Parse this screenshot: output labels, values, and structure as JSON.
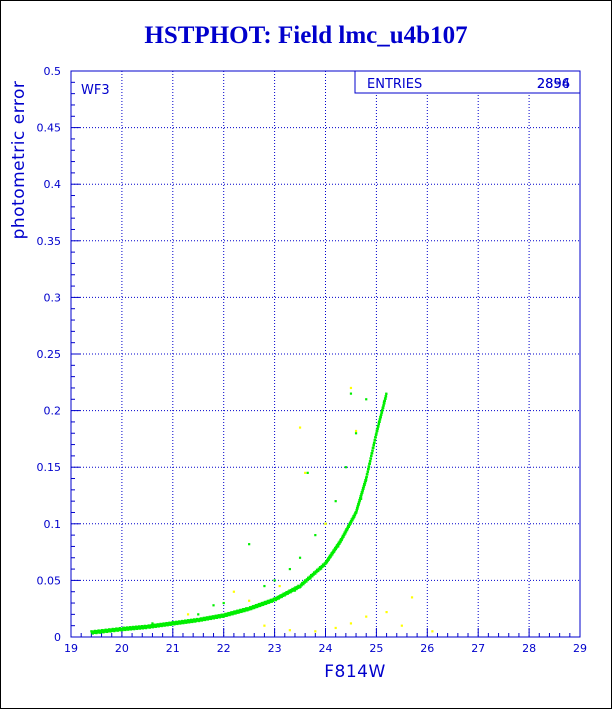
{
  "chart_data": {
    "type": "scatter",
    "title": "HSTPHOT: Field lmc_u4b107",
    "xlabel": "F814W",
    "ylabel": "photometric error",
    "xlim": [
      19,
      29
    ],
    "ylim": [
      0,
      0.5
    ],
    "x_ticks": [
      "19",
      "20",
      "21",
      "22",
      "23",
      "24",
      "25",
      "26",
      "27",
      "28",
      "29"
    ],
    "y_ticks": [
      "0",
      "0.05",
      "0.1",
      "0.15",
      "0.2",
      "0.25",
      "0.3",
      "0.35",
      "0.4",
      "0.45",
      "0.5"
    ],
    "grid": true,
    "panel_label": "WF3",
    "stats_box": {
      "label": "ENTRIES",
      "values": [
        "2896",
        "2854"
      ]
    },
    "series": [
      {
        "color": "#00ee00",
        "description": "main sequence of stars",
        "curve": [
          [
            19.4,
            0.004
          ],
          [
            20,
            0.007
          ],
          [
            20.5,
            0.009
          ],
          [
            21,
            0.012
          ],
          [
            21.5,
            0.015
          ],
          [
            22,
            0.019
          ],
          [
            22.5,
            0.025
          ],
          [
            23,
            0.033
          ],
          [
            23.5,
            0.045
          ],
          [
            24,
            0.065
          ],
          [
            24.3,
            0.085
          ],
          [
            24.6,
            0.11
          ],
          [
            24.8,
            0.14
          ],
          [
            25,
            0.18
          ],
          [
            25.2,
            0.215
          ]
        ],
        "points": [
          [
            19.6,
            0.005
          ],
          [
            19.9,
            0.006
          ],
          [
            20.3,
            0.008
          ],
          [
            20.8,
            0.011
          ],
          [
            21.2,
            0.013
          ],
          [
            21.6,
            0.016
          ],
          [
            21.9,
            0.018
          ],
          [
            22.3,
            0.022
          ],
          [
            22.7,
            0.028
          ],
          [
            23.1,
            0.036
          ],
          [
            23.4,
            0.041
          ],
          [
            23.7,
            0.052
          ],
          [
            23.9,
            0.06
          ],
          [
            24.1,
            0.072
          ],
          [
            24.25,
            0.08
          ],
          [
            24.4,
            0.094
          ],
          [
            24.55,
            0.105
          ],
          [
            24.7,
            0.122
          ],
          [
            24.85,
            0.15
          ],
          [
            24.95,
            0.17
          ],
          [
            25.05,
            0.19
          ],
          [
            25.15,
            0.208
          ],
          [
            23.0,
            0.05
          ],
          [
            23.5,
            0.07
          ],
          [
            23.8,
            0.09
          ],
          [
            24.0,
            0.1
          ],
          [
            24.2,
            0.12
          ],
          [
            24.4,
            0.15
          ],
          [
            24.6,
            0.18
          ],
          [
            24.8,
            0.21
          ],
          [
            22.5,
            0.082
          ],
          [
            23.65,
            0.145
          ],
          [
            24.5,
            0.215
          ],
          [
            22.0,
            0.03
          ],
          [
            21.8,
            0.028
          ],
          [
            22.8,
            0.045
          ],
          [
            23.3,
            0.06
          ],
          [
            21.5,
            0.02
          ],
          [
            20.6,
            0.012
          ]
        ]
      },
      {
        "color": "#ffff00",
        "description": "outlier detections",
        "points": [
          [
            23.5,
            0.185
          ],
          [
            24.6,
            0.182
          ],
          [
            24.5,
            0.22
          ],
          [
            23.6,
            0.145
          ],
          [
            24.0,
            0.1
          ],
          [
            23.1,
            0.045
          ],
          [
            22.8,
            0.01
          ],
          [
            23.8,
            0.005
          ],
          [
            24.2,
            0.008
          ],
          [
            24.5,
            0.012
          ],
          [
            25.2,
            0.022
          ],
          [
            25.7,
            0.035
          ],
          [
            26.1,
            0.005
          ],
          [
            21.3,
            0.02
          ],
          [
            22.2,
            0.04
          ],
          [
            22.5,
            0.032
          ],
          [
            24.8,
            0.018
          ],
          [
            25.5,
            0.01
          ],
          [
            23.3,
            0.006
          ]
        ]
      }
    ]
  }
}
